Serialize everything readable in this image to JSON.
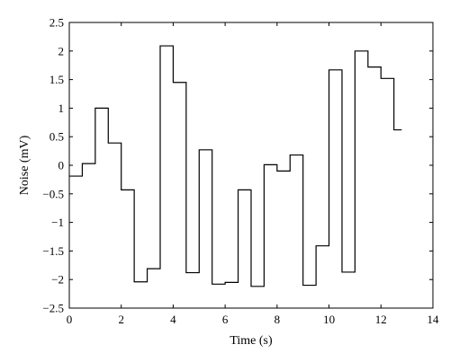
{
  "chart_data": {
    "type": "line",
    "step": "post",
    "xlabel": "Time (s)",
    "ylabel": "Noise (mV)",
    "xlim": [
      0,
      14
    ],
    "ylim": [
      -2.5,
      2.5
    ],
    "xticks": [
      0,
      2,
      4,
      6,
      8,
      10,
      12,
      14
    ],
    "yticks": [
      -2.5,
      -2,
      -1.5,
      -1,
      -0.5,
      0,
      0.5,
      1,
      1.5,
      2,
      2.5
    ],
    "ytick_labels": [
      "−2.5",
      "−2",
      "−1.5",
      "−1",
      "−0.5",
      "0",
      "0.5",
      "1",
      "1.5",
      "2",
      "2.5"
    ],
    "grid": false,
    "series": [
      {
        "color": "#000000",
        "x": [
          0,
          0.5,
          1.0,
          1.5,
          2.0,
          2.5,
          3.0,
          3.5,
          4.0,
          4.5,
          5.0,
          5.5,
          6.0,
          6.5,
          7.0,
          7.5,
          8.0,
          8.5,
          9.0,
          9.5,
          10.0,
          10.5,
          11.0,
          11.5,
          12.0,
          12.5
        ],
        "y": [
          -0.19,
          0.03,
          1.0,
          0.39,
          -0.43,
          -2.04,
          -1.81,
          2.09,
          1.45,
          -1.88,
          0.27,
          -2.08,
          -2.05,
          -0.43,
          -2.12,
          0.01,
          -0.1,
          0.18,
          -2.1,
          -1.41,
          1.67,
          -1.87,
          2.0,
          1.72,
          1.52,
          0.62
        ],
        "x_end": 12.8
      }
    ]
  }
}
